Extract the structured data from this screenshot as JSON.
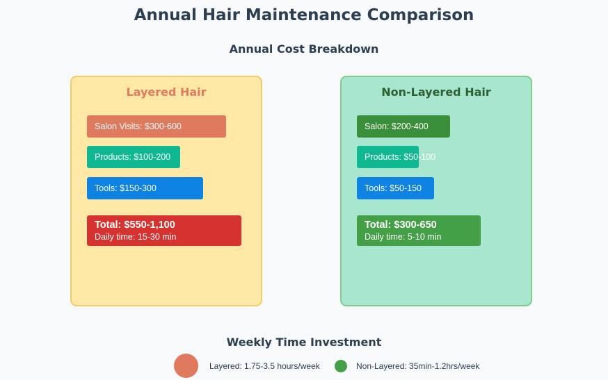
{
  "title": "Annual Hair Maintenance Comparison",
  "subtitle": "Annual Cost Breakdown",
  "layered": {
    "heading": "Layered Hair",
    "salon": "Salon Visits: $300-600",
    "products": "Products: $100-200",
    "tools": "Tools: $150-300",
    "total": "Total: $550-1,100",
    "daily": "Daily time: 15-30 min",
    "colors": {
      "salon": "#e07a5f",
      "products": "#10b891",
      "tools": "#0e83e4",
      "total": "#d63230"
    }
  },
  "non_layered": {
    "heading": "Non-Layered Hair",
    "salon": "Salon: $200-400",
    "products": "Products: $50-100",
    "tools": "Tools: $50-150",
    "total": "Total: $300-650",
    "daily": "Daily time: 5-10 min",
    "colors": {
      "salon": "#3a8f3a",
      "products": "#10b891",
      "tools": "#0e83e4",
      "total": "#43a047"
    }
  },
  "weekly": {
    "heading": "Weekly Time Investment",
    "layered_label": "Layered: 1.75-3.5 hours/week",
    "non_layered_label": "Non-Layered: 35min-1.2hrs/week",
    "layered_color": "#e07a5f",
    "non_layered_color": "#43a047"
  }
}
